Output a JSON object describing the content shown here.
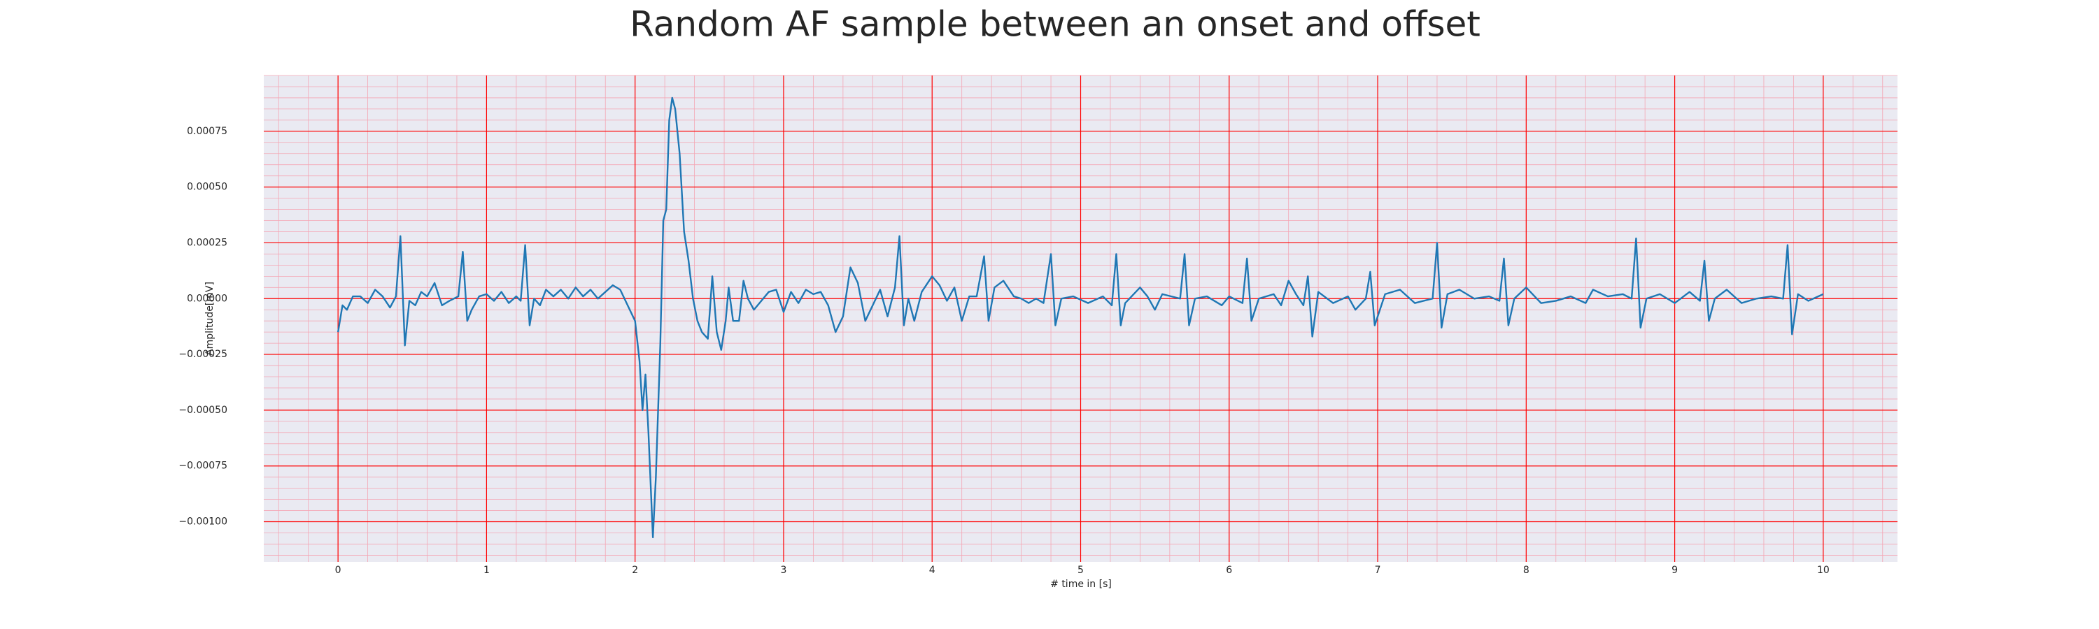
{
  "chart_data": {
    "type": "line",
    "title": "Random AF sample between an onset and offset",
    "xlabel": "# time in [s]",
    "ylabel": "Amplitude[mV]",
    "xlim": [
      -0.5,
      10.5
    ],
    "ylim": [
      -0.00118,
      0.001
    ],
    "xticks": [
      0,
      1,
      2,
      3,
      4,
      5,
      6,
      7,
      8,
      9,
      10
    ],
    "yticks": [
      {
        "value": -0.001,
        "label": "−0.00100"
      },
      {
        "value": -0.00075,
        "label": "−0.00075"
      },
      {
        "value": -0.0005,
        "label": "−0.00050"
      },
      {
        "value": -0.00025,
        "label": "−0.00025"
      },
      {
        "value": 0,
        "label": "0.00000"
      },
      {
        "value": 0.00025,
        "label": "0.00025"
      },
      {
        "value": 0.0005,
        "label": "0.00050"
      },
      {
        "value": 0.00075,
        "label": "0.00075"
      }
    ],
    "grid": true,
    "grid_color": "#ff0000",
    "minor_grid": true,
    "minor_grid_color": "#f4a6b4",
    "background": "#eaeaf2",
    "x": [
      0,
      0.03,
      0.06,
      0.1,
      0.15,
      0.2,
      0.25,
      0.3,
      0.35,
      0.39,
      0.42,
      0.45,
      0.48,
      0.52,
      0.56,
      0.6,
      0.65,
      0.7,
      0.75,
      0.81,
      0.84,
      0.87,
      0.9,
      0.95,
      1.0,
      1.05,
      1.1,
      1.15,
      1.2,
      1.23,
      1.26,
      1.29,
      1.32,
      1.36,
      1.4,
      1.45,
      1.5,
      1.55,
      1.6,
      1.65,
      1.7,
      1.75,
      1.8,
      1.85,
      1.9,
      1.95,
      2.0,
      2.03,
      2.05,
      2.07,
      2.09,
      2.12,
      2.14,
      2.17,
      2.19,
      2.21,
      2.23,
      2.25,
      2.27,
      2.3,
      2.33,
      2.36,
      2.39,
      2.42,
      2.45,
      2.49,
      2.52,
      2.55,
      2.58,
      2.61,
      2.63,
      2.66,
      2.7,
      2.73,
      2.76,
      2.8,
      2.85,
      2.9,
      2.95,
      3.0,
      3.05,
      3.1,
      3.15,
      3.2,
      3.25,
      3.3,
      3.35,
      3.4,
      3.45,
      3.5,
      3.55,
      3.6,
      3.65,
      3.7,
      3.75,
      3.78,
      3.81,
      3.84,
      3.88,
      3.93,
      4.0,
      4.05,
      4.1,
      4.15,
      4.2,
      4.25,
      4.3,
      4.35,
      4.38,
      4.42,
      4.48,
      4.55,
      4.6,
      4.65,
      4.7,
      4.75,
      4.8,
      4.83,
      4.87,
      4.95,
      5.05,
      5.15,
      5.21,
      5.24,
      5.27,
      5.3,
      5.4,
      5.45,
      5.5,
      5.55,
      5.67,
      5.7,
      5.73,
      5.77,
      5.85,
      5.95,
      6.0,
      6.09,
      6.12,
      6.15,
      6.2,
      6.3,
      6.35,
      6.4,
      6.45,
      6.5,
      6.53,
      6.56,
      6.6,
      6.7,
      6.8,
      6.85,
      6.92,
      6.95,
      6.98,
      7.05,
      7.15,
      7.25,
      7.37,
      7.4,
      7.43,
      7.47,
      7.55,
      7.65,
      7.75,
      7.82,
      7.85,
      7.88,
      7.92,
      8.0,
      8.1,
      8.2,
      8.3,
      8.4,
      8.45,
      8.55,
      8.65,
      8.71,
      8.74,
      8.77,
      8.81,
      8.9,
      9.0,
      9.1,
      9.17,
      9.2,
      9.23,
      9.27,
      9.35,
      9.45,
      9.55,
      9.65,
      9.73,
      9.76,
      9.79,
      9.83,
      9.9,
      10.0
    ],
    "series": [
      {
        "color": "#1f77b4",
        "values": [
          -0.00015,
          -3e-05,
          -5e-05,
          1e-05,
          1e-05,
          -2e-05,
          4e-05,
          1e-05,
          -4e-05,
          1e-05,
          0.00028,
          -0.00021,
          -1e-05,
          -3e-05,
          3e-05,
          1e-05,
          7e-05,
          -3e-05,
          -1e-05,
          1e-05,
          0.00021,
          -0.0001,
          -5e-05,
          1e-05,
          2e-05,
          -1e-05,
          3e-05,
          -2e-05,
          1e-05,
          -1e-05,
          0.00024,
          -0.00012,
          0,
          -3e-05,
          4e-05,
          1e-05,
          4e-05,
          0,
          5e-05,
          1e-05,
          4e-05,
          0,
          3e-05,
          6e-05,
          4e-05,
          -3e-05,
          -0.0001,
          -0.00028,
          -0.0005,
          -0.00034,
          -0.0006,
          -0.00107,
          -0.0008,
          -0.0002,
          0.00035,
          0.0004,
          0.0008,
          0.0009,
          0.00085,
          0.00065,
          0.0003,
          0.00017,
          0,
          -0.0001,
          -0.00015,
          -0.00018,
          0.0001,
          -0.00015,
          -0.00023,
          -0.0001,
          5e-05,
          -0.0001,
          -0.0001,
          8e-05,
          0,
          -5e-05,
          -1e-05,
          3e-05,
          4e-05,
          -6e-05,
          3e-05,
          -2e-05,
          4e-05,
          2e-05,
          3e-05,
          -3e-05,
          -0.00015,
          -8e-05,
          0.00014,
          7e-05,
          -0.0001,
          -3e-05,
          4e-05,
          -8e-05,
          5e-05,
          0.00028,
          -0.00012,
          0,
          -0.0001,
          3e-05,
          0.0001,
          6e-05,
          -1e-05,
          5e-05,
          -0.0001,
          1e-05,
          1e-05,
          0.00019,
          -0.0001,
          5e-05,
          8e-05,
          1e-05,
          0,
          -2e-05,
          0,
          -2e-05,
          0.0002,
          -0.00012,
          0,
          1e-05,
          -2e-05,
          1e-05,
          -3e-05,
          0.0002,
          -0.00012,
          -2e-05,
          5e-05,
          1e-05,
          -5e-05,
          2e-05,
          0,
          0.0002,
          -0.00012,
          0,
          1e-05,
          -3e-05,
          1e-05,
          -2e-05,
          0.00018,
          -0.0001,
          0,
          2e-05,
          -3e-05,
          8e-05,
          2e-05,
          -3e-05,
          0.0001,
          -0.00017,
          3e-05,
          -2e-05,
          1e-05,
          -5e-05,
          0,
          0.00012,
          -0.00012,
          2e-05,
          4e-05,
          -2e-05,
          0,
          0.00025,
          -0.00013,
          2e-05,
          4e-05,
          0,
          1e-05,
          -1e-05,
          0.00018,
          -0.00012,
          0,
          5e-05,
          -2e-05,
          -1e-05,
          1e-05,
          -2e-05,
          4e-05,
          1e-05,
          2e-05,
          0,
          0.00027,
          -0.00013,
          0,
          2e-05,
          -2e-05,
          3e-05,
          -1e-05,
          0.00017,
          -0.0001,
          0,
          4e-05,
          -2e-05,
          0,
          1e-05,
          0,
          0.00024,
          -0.00016,
          2e-05,
          -1e-05,
          2e-05
        ]
      }
    ]
  }
}
